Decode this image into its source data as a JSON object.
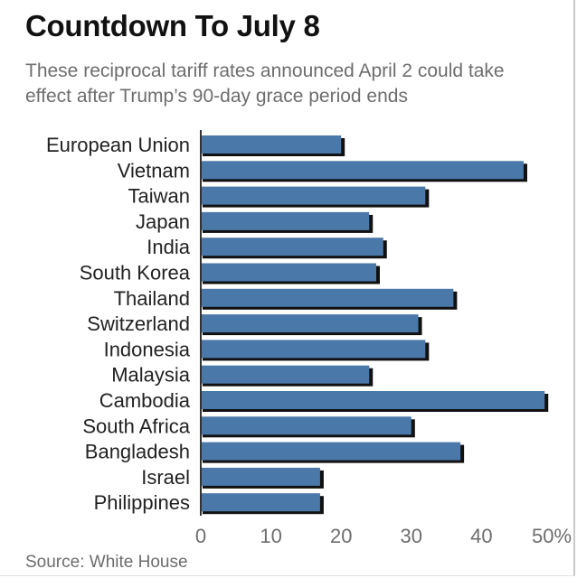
{
  "title": "Countdown To July 8",
  "subtitle": "These reciprocal tariff rates announced April 2 could take effect after Trump’s 90-day grace period ends",
  "source": "Source: White House",
  "colors": {
    "bar": "#4a78a8",
    "shadow": "#111111",
    "axis": "#333333",
    "text": "#222222",
    "muted": "#6d6d6d"
  },
  "chart_data": {
    "type": "bar",
    "orientation": "horizontal",
    "categories": [
      "European Union",
      "Vietnam",
      "Taiwan",
      "Japan",
      "India",
      "South Korea",
      "Thailand",
      "Switzerland",
      "Indonesia",
      "Malaysia",
      "Cambodia",
      "South Africa",
      "Bangladesh",
      "Israel",
      "Philippines"
    ],
    "values": [
      20,
      46,
      32,
      24,
      26,
      25,
      36,
      31,
      32,
      24,
      49,
      30,
      37,
      17,
      17
    ],
    "xlim": [
      0,
      50
    ],
    "ticks": [
      "0",
      "10",
      "20",
      "30",
      "40",
      "50%"
    ],
    "grid": false
  }
}
